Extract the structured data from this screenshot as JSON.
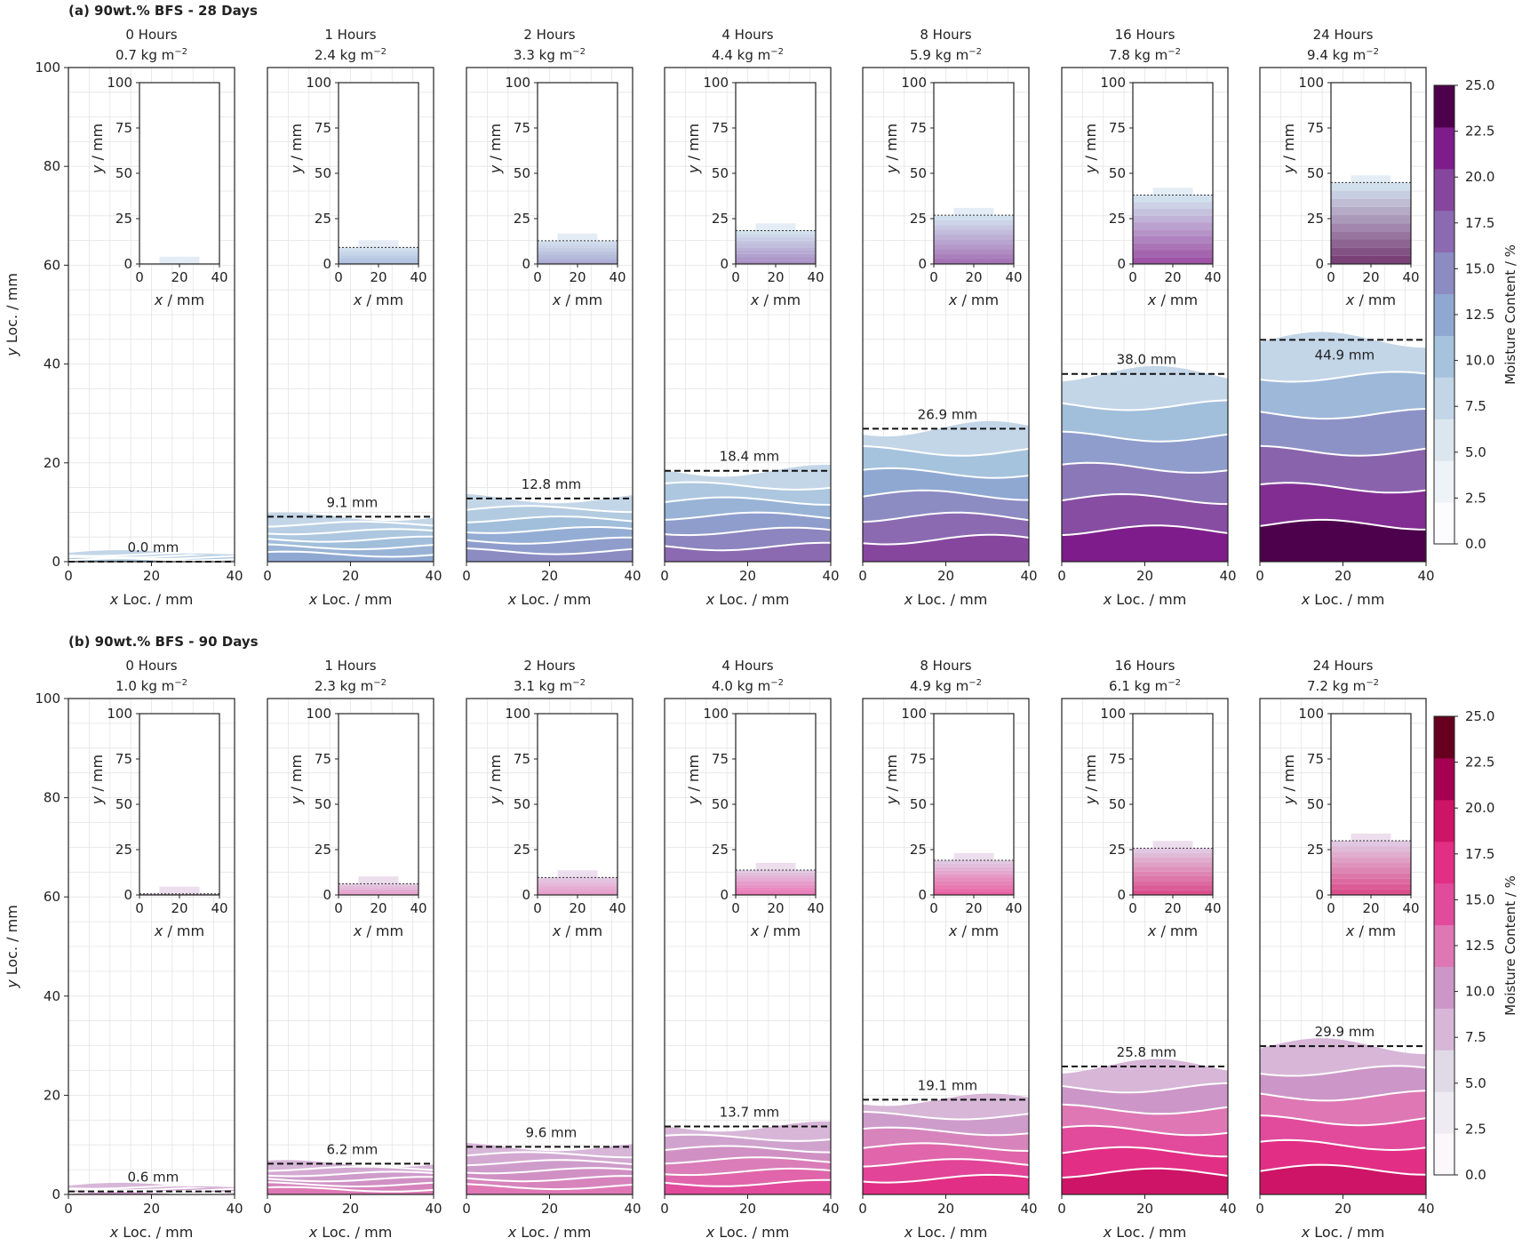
{
  "chart_data": [
    {
      "type": "heatmap",
      "panel_title": "(a) 90wt.% BFS - 28 Days",
      "xlabel": "x Loc. / mm",
      "ylabel": "y Loc. / mm",
      "xlim": [
        0,
        40
      ],
      "ylim": [
        0,
        100
      ],
      "x_ticks": [
        "0",
        "20",
        "40"
      ],
      "y_ticks": [
        "0",
        "20",
        "40",
        "60",
        "80",
        "100"
      ],
      "inset": {
        "xlabel": "x / mm",
        "ylabel": "y / mm",
        "x_ticks": [
          "0",
          "20",
          "40"
        ],
        "y_ticks": [
          "0",
          "25",
          "50",
          "75",
          "100"
        ]
      },
      "colorbar": {
        "label": "Moisture Content / %",
        "ticks": [
          "0.0",
          "2.5",
          "5.0",
          "7.5",
          "10.0",
          "12.5",
          "15.0",
          "17.5",
          "20.0",
          "22.5",
          "25.0"
        ],
        "colors": [
          "#fcfbfd",
          "#eef3f7",
          "#dce6ef",
          "#c3d6e8",
          "#a6c3dd",
          "#8fa8d2",
          "#8c8cc3",
          "#8b6ab1",
          "#86469e",
          "#7d1c8a",
          "#4d004b"
        ]
      },
      "series": [
        {
          "time": "0 Hours",
          "mass": "0.7 kg m",
          "front_label": "0.0 mm",
          "front": 0.0
        },
        {
          "time": "1 Hours",
          "mass": "2.4 kg m",
          "front_label": "9.1 mm",
          "front": 9.1
        },
        {
          "time": "2 Hours",
          "mass": "3.3 kg m",
          "front_label": "12.8 mm",
          "front": 12.8
        },
        {
          "time": "4 Hours",
          "mass": "4.4 kg m",
          "front_label": "18.4 mm",
          "front": 18.4
        },
        {
          "time": "8 Hours",
          "mass": "5.9 kg m",
          "front_label": "26.9 mm",
          "front": 26.9
        },
        {
          "time": "16 Hours",
          "mass": "7.8 kg m",
          "front_label": "38.0 mm",
          "front": 38.0
        },
        {
          "time": "24 Hours",
          "mass": "9.4 kg m",
          "front_label": "44.9 mm",
          "front": 44.9
        }
      ]
    },
    {
      "type": "heatmap",
      "panel_title": "(b) 90wt.% BFS - 90 Days",
      "xlabel": "x Loc. / mm",
      "ylabel": "y Loc. / mm",
      "xlim": [
        0,
        40
      ],
      "ylim": [
        0,
        100
      ],
      "x_ticks": [
        "0",
        "20",
        "40"
      ],
      "y_ticks": [
        "0",
        "20",
        "40",
        "60",
        "80",
        "100"
      ],
      "inset": {
        "xlabel": "x / mm",
        "ylabel": "y / mm",
        "x_ticks": [
          "0",
          "20",
          "40"
        ],
        "y_ticks": [
          "0",
          "25",
          "50",
          "75",
          "100"
        ]
      },
      "colorbar": {
        "label": "Moisture Content / %",
        "ticks": [
          "0.0",
          "2.5",
          "5.0",
          "7.5",
          "10.0",
          "12.5",
          "15.0",
          "17.5",
          "20.0",
          "22.5",
          "25.0"
        ],
        "colors": [
          "#fbf7fb",
          "#eeebf3",
          "#e0dae6",
          "#d7b6d8",
          "#cc96c8",
          "#de77b4",
          "#e24a9c",
          "#e22e84",
          "#ce1466",
          "#a50052",
          "#67001f"
        ]
      },
      "series": [
        {
          "time": "0 Hours",
          "mass": "1.0 kg m",
          "front_label": "0.6 mm",
          "front": 0.6
        },
        {
          "time": "1 Hours",
          "mass": "2.3 kg m",
          "front_label": "6.2 mm",
          "front": 6.2
        },
        {
          "time": "2 Hours",
          "mass": "3.1 kg m",
          "front_label": "9.6 mm",
          "front": 9.6
        },
        {
          "time": "4 Hours",
          "mass": "4.0 kg m",
          "front_label": "13.7 mm",
          "front": 13.7
        },
        {
          "time": "8 Hours",
          "mass": "4.9 kg m",
          "front_label": "19.1 mm",
          "front": 19.1
        },
        {
          "time": "16 Hours",
          "mass": "6.1 kg m",
          "front_label": "25.8 mm",
          "front": 25.8
        },
        {
          "time": "24 Hours",
          "mass": "7.2 kg m",
          "front_label": "29.9 mm",
          "front": 29.9
        }
      ]
    }
  ]
}
